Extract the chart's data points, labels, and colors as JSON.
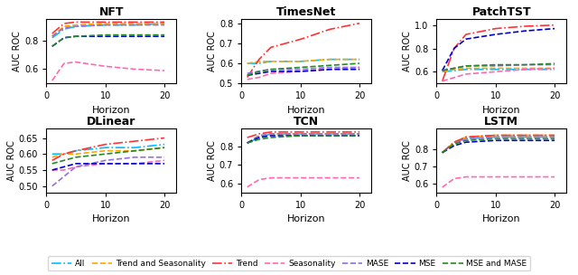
{
  "subplots": [
    {
      "title": "NFT",
      "ylabel": "AUC ROC",
      "xlabel": "Horizon",
      "ylim": [
        0.5,
        0.95
      ],
      "yticks": [
        0.6,
        0.8
      ],
      "series": {
        "All": [
          0.82,
          0.88,
          0.9,
          0.91,
          0.91,
          0.92
        ],
        "Trend and Seasonality": [
          0.83,
          0.9,
          0.91,
          0.92,
          0.92,
          0.92
        ],
        "Trend": [
          0.85,
          0.92,
          0.93,
          0.93,
          0.93,
          0.93
        ],
        "Seasonality": [
          0.52,
          0.64,
          0.65,
          0.62,
          0.6,
          0.59
        ],
        "MASE": [
          0.83,
          0.89,
          0.9,
          0.91,
          0.91,
          0.91
        ],
        "MSE": [
          0.76,
          0.82,
          0.83,
          0.83,
          0.83,
          0.83
        ],
        "MSE and MASE": [
          0.76,
          0.82,
          0.83,
          0.84,
          0.84,
          0.84
        ]
      }
    },
    {
      "title": "TimesNet",
      "ylabel": "AUC ROC",
      "xlabel": "Horizon",
      "ylim": [
        0.5,
        0.82
      ],
      "yticks": [
        0.5,
        0.6,
        0.7,
        0.8
      ],
      "series": {
        "All": [
          0.6,
          0.6,
          0.61,
          0.61,
          0.62,
          0.62
        ],
        "Trend and Seasonality": [
          0.6,
          0.61,
          0.61,
          0.61,
          0.62,
          0.62
        ],
        "Trend": [
          0.53,
          0.62,
          0.68,
          0.72,
          0.77,
          0.8
        ],
        "Seasonality": [
          0.52,
          0.53,
          0.55,
          0.56,
          0.57,
          0.58
        ],
        "MASE": [
          0.55,
          0.56,
          0.57,
          0.57,
          0.58,
          0.58
        ],
        "MSE": [
          0.54,
          0.55,
          0.56,
          0.56,
          0.57,
          0.57
        ],
        "MSE and MASE": [
          0.54,
          0.56,
          0.57,
          0.58,
          0.59,
          0.6
        ]
      }
    },
    {
      "title": "PatchTST",
      "ylabel": "AUC ROC",
      "xlabel": "Horizon",
      "ylim": [
        0.5,
        1.05
      ],
      "yticks": [
        0.6,
        0.8,
        1.0
      ],
      "series": {
        "All": [
          0.6,
          0.61,
          0.62,
          0.62,
          0.62,
          0.62
        ],
        "Trend and Seasonality": [
          0.6,
          0.62,
          0.63,
          0.63,
          0.63,
          0.63
        ],
        "Trend": [
          0.52,
          0.8,
          0.92,
          0.97,
          0.99,
          1.0
        ],
        "Seasonality": [
          0.52,
          0.55,
          0.58,
          0.6,
          0.62,
          0.63
        ],
        "MASE": [
          0.61,
          0.63,
          0.65,
          0.65,
          0.66,
          0.66
        ],
        "MSE": [
          0.61,
          0.8,
          0.88,
          0.92,
          0.95,
          0.97
        ],
        "MSE and MASE": [
          0.61,
          0.63,
          0.65,
          0.66,
          0.66,
          0.67
        ]
      }
    },
    {
      "title": "DLinear",
      "ylabel": "AUC ROC",
      "xlabel": "Horizon",
      "ylim": [
        0.48,
        0.68
      ],
      "yticks": [
        0.5,
        0.55,
        0.6,
        0.65
      ],
      "series": {
        "All": [
          0.6,
          0.6,
          0.61,
          0.62,
          0.62,
          0.63
        ],
        "Trend and Seasonality": [
          0.59,
          0.6,
          0.6,
          0.61,
          0.61,
          0.62
        ],
        "Trend": [
          0.58,
          0.6,
          0.61,
          0.63,
          0.64,
          0.65
        ],
        "Seasonality": [
          0.55,
          0.55,
          0.56,
          0.57,
          0.57,
          0.58
        ],
        "MASE": [
          0.5,
          0.53,
          0.56,
          0.58,
          0.59,
          0.59
        ],
        "MSE": [
          0.55,
          0.56,
          0.57,
          0.57,
          0.57,
          0.57
        ],
        "MSE and MASE": [
          0.57,
          0.58,
          0.59,
          0.6,
          0.61,
          0.62
        ]
      }
    },
    {
      "title": "TCN",
      "ylabel": "AUC ROC",
      "xlabel": "Horizon",
      "ylim": [
        0.55,
        0.9
      ],
      "yticks": [
        0.6,
        0.7,
        0.8
      ],
      "series": {
        "All": [
          0.82,
          0.85,
          0.87,
          0.87,
          0.87,
          0.87
        ],
        "Trend and Seasonality": [
          0.82,
          0.86,
          0.87,
          0.87,
          0.87,
          0.87
        ],
        "Trend": [
          0.85,
          0.87,
          0.88,
          0.88,
          0.88,
          0.88
        ],
        "Seasonality": [
          0.58,
          0.62,
          0.63,
          0.63,
          0.63,
          0.63
        ],
        "MASE": [
          0.82,
          0.86,
          0.87,
          0.87,
          0.87,
          0.87
        ],
        "MSE": [
          0.82,
          0.85,
          0.86,
          0.86,
          0.86,
          0.86
        ],
        "MSE and MASE": [
          0.82,
          0.84,
          0.85,
          0.86,
          0.86,
          0.86
        ]
      }
    },
    {
      "title": "LSTM",
      "ylabel": "AUC ROC",
      "xlabel": "Horizon",
      "ylim": [
        0.55,
        0.92
      ],
      "yticks": [
        0.6,
        0.7,
        0.8
      ],
      "series": {
        "All": [
          0.78,
          0.84,
          0.86,
          0.87,
          0.87,
          0.87
        ],
        "Trend and Seasonality": [
          0.78,
          0.84,
          0.87,
          0.88,
          0.88,
          0.88
        ],
        "Trend": [
          0.78,
          0.84,
          0.87,
          0.88,
          0.88,
          0.88
        ],
        "Seasonality": [
          0.58,
          0.63,
          0.64,
          0.64,
          0.64,
          0.64
        ],
        "MASE": [
          0.78,
          0.83,
          0.86,
          0.87,
          0.87,
          0.87
        ],
        "MSE": [
          0.78,
          0.82,
          0.84,
          0.85,
          0.85,
          0.85
        ],
        "MSE and MASE": [
          0.78,
          0.83,
          0.85,
          0.86,
          0.86,
          0.86
        ]
      }
    }
  ],
  "x_values": [
    1,
    3,
    5,
    10,
    15,
    20
  ],
  "line_styles": {
    "All": {
      "color": "#00BFFF",
      "linestyle": "-.",
      "linewidth": 1.2
    },
    "Trend and Seasonality": {
      "color": "#FFA500",
      "linestyle": "--",
      "linewidth": 1.2
    },
    "Trend": {
      "color": "#FF3333",
      "linestyle": "-.",
      "linewidth": 1.2
    },
    "Seasonality": {
      "color": "#FF69B4",
      "linestyle": "--",
      "linewidth": 1.2
    },
    "MASE": {
      "color": "#9370DB",
      "linestyle": "--",
      "linewidth": 1.2
    },
    "MSE": {
      "color": "#0000CD",
      "linestyle": "--",
      "linewidth": 1.2
    },
    "MSE and MASE": {
      "color": "#228B22",
      "linestyle": "--",
      "linewidth": 1.2
    }
  },
  "legend_order": [
    "All",
    "Trend and Seasonality",
    "Trend",
    "Seasonality",
    "MASE",
    "MSE",
    "MSE and MASE"
  ]
}
